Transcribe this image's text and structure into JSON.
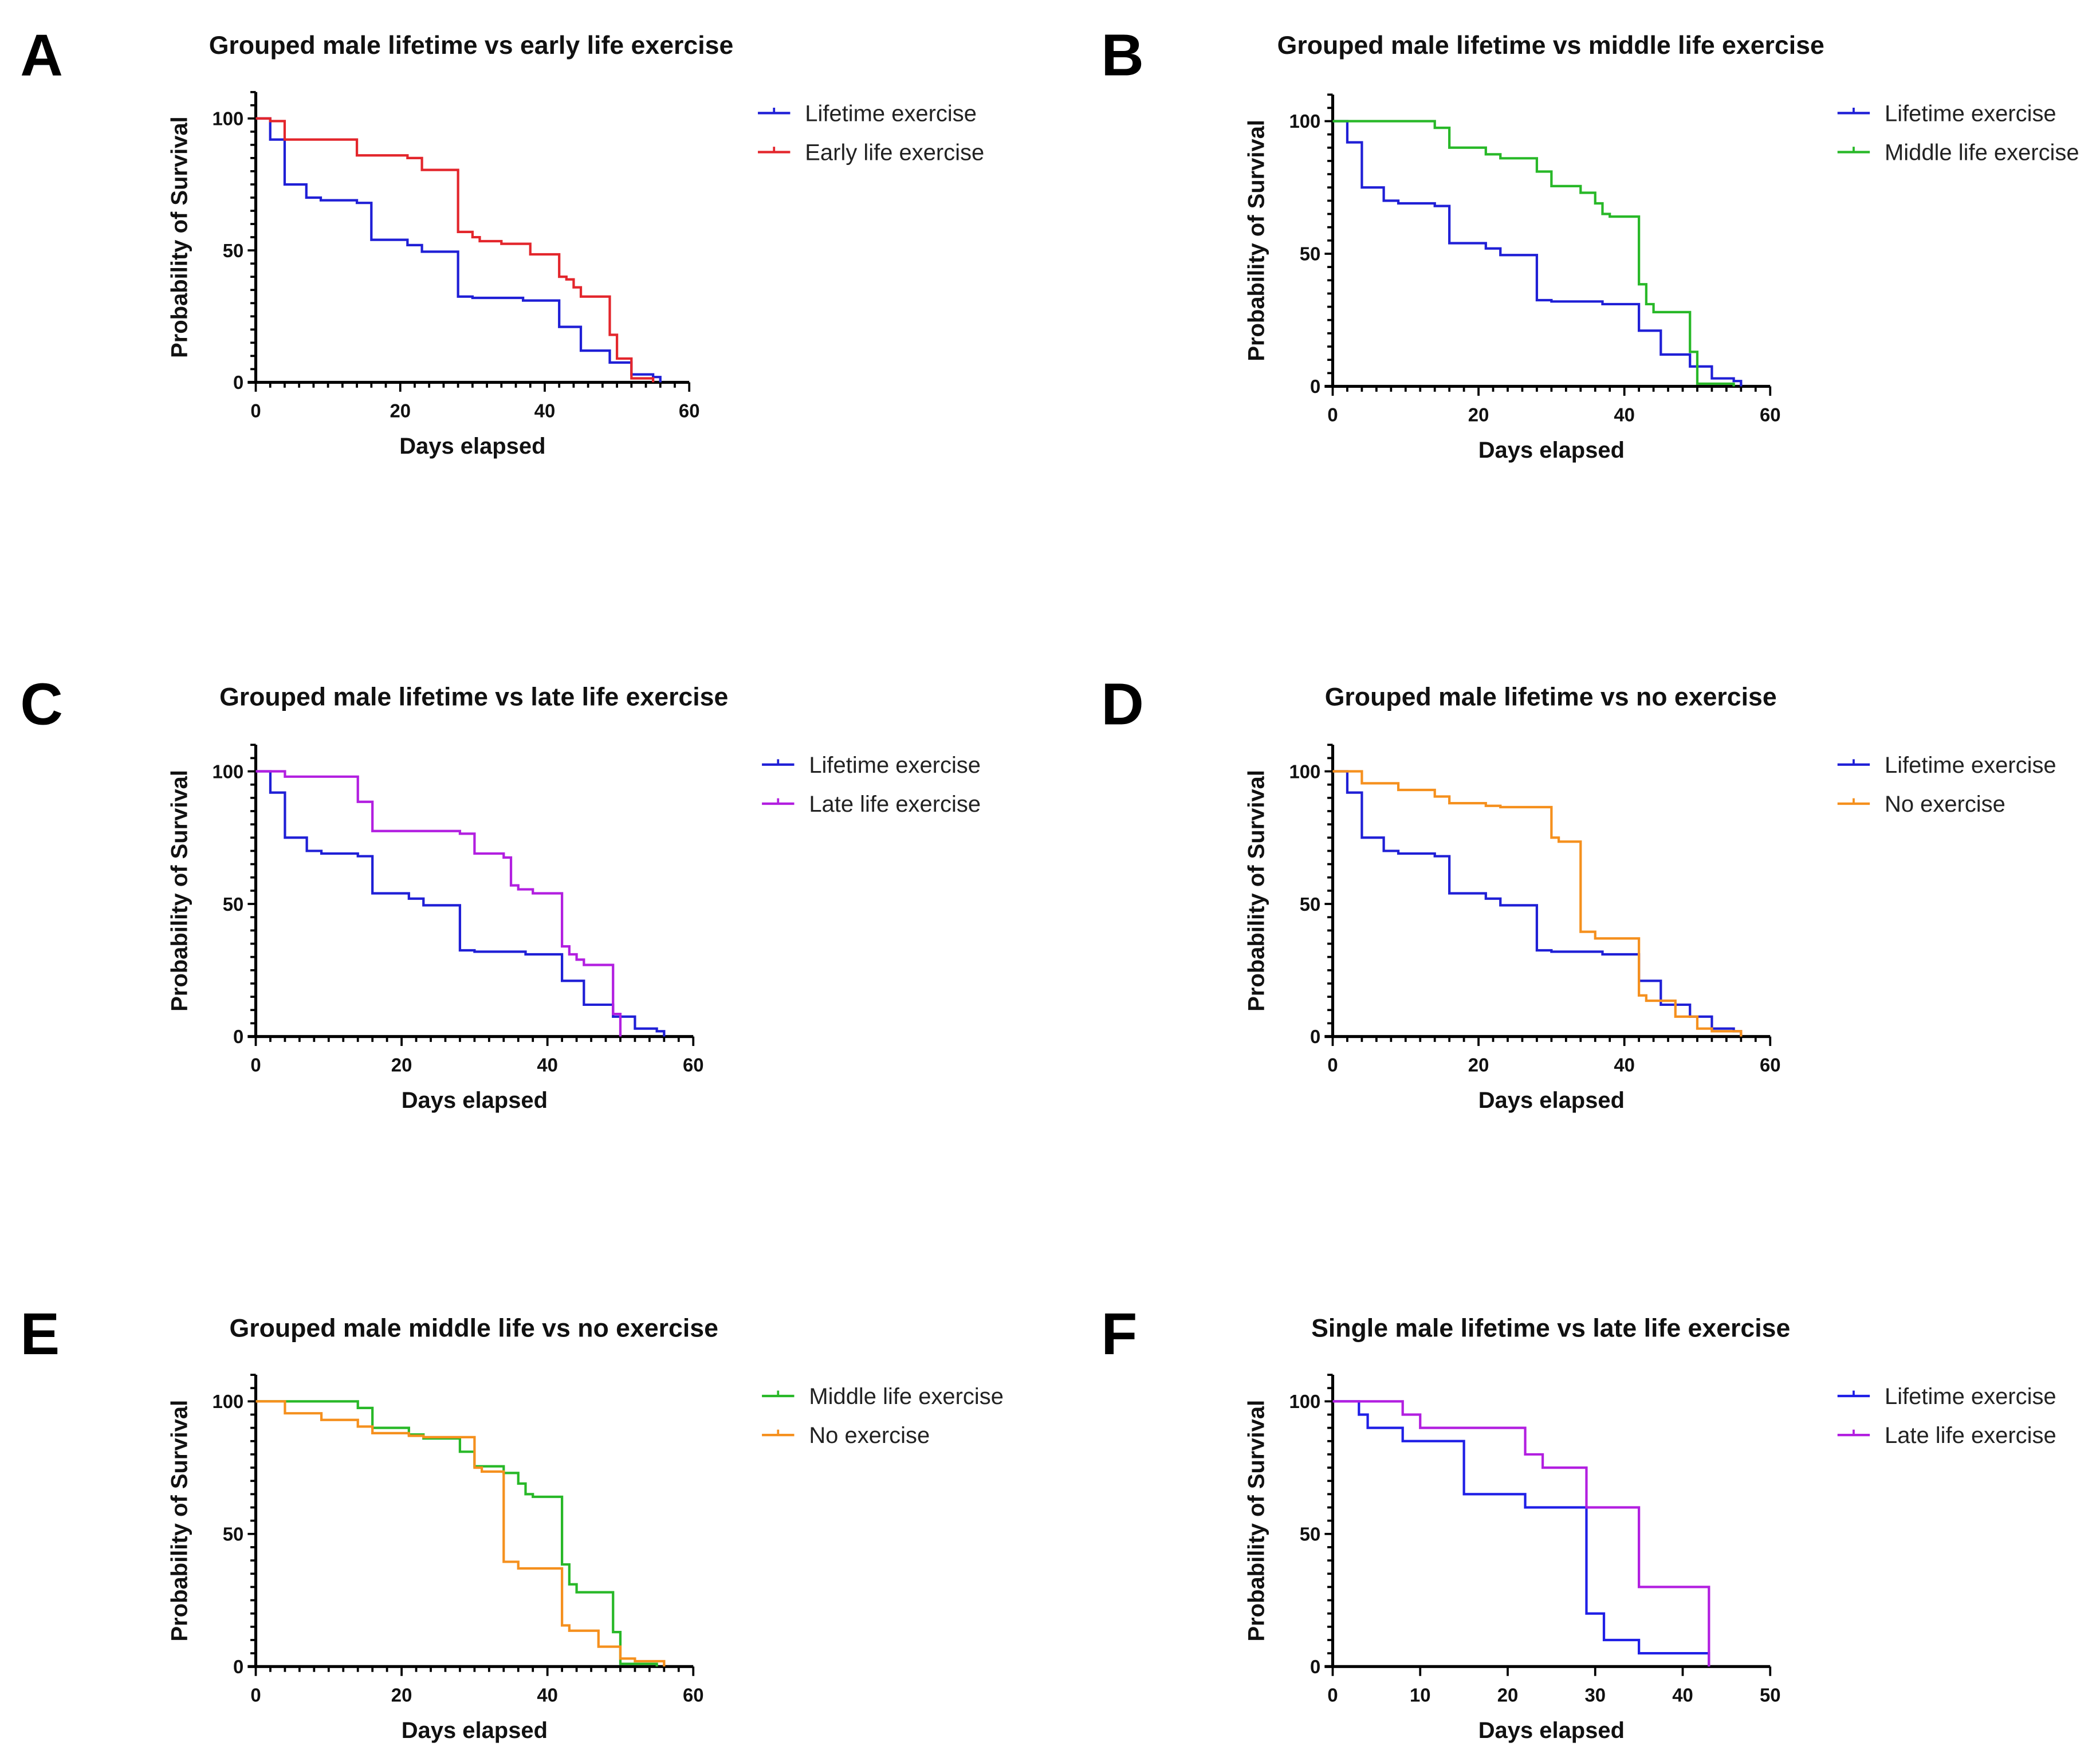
{
  "chart_data": [
    {
      "panel": "A",
      "type": "line",
      "step": true,
      "title": "Grouped male lifetime vs early life exercise",
      "xlabel": "Days elapsed",
      "ylabel": "Probability of Survival",
      "xlim": [
        0,
        60
      ],
      "ylim": [
        0,
        110
      ],
      "xticks": [
        0,
        20,
        40,
        60
      ],
      "yticks": [
        0,
        50,
        100
      ],
      "legend_placement": "right",
      "series": [
        {
          "name": "Lifetime exercise",
          "color": "#1f1fd6",
          "steps": [
            [
              0,
              100
            ],
            [
              2,
              92
            ],
            [
              4,
              75
            ],
            [
              7,
              70
            ],
            [
              9,
              69
            ],
            [
              14,
              68
            ],
            [
              16,
              54
            ],
            [
              21,
              52
            ],
            [
              23,
              49.5
            ],
            [
              28,
              32.5
            ],
            [
              30,
              32
            ],
            [
              37,
              31
            ],
            [
              42,
              21
            ],
            [
              45,
              12
            ],
            [
              49,
              7.5
            ],
            [
              52,
              3
            ],
            [
              55,
              2
            ],
            [
              56,
              0
            ]
          ]
        },
        {
          "name": "Early life exercise",
          "color": "#e3262c",
          "steps": [
            [
              0,
              100
            ],
            [
              2,
              99
            ],
            [
              4,
              92
            ],
            [
              14,
              86
            ],
            [
              21,
              85
            ],
            [
              23,
              80.5
            ],
            [
              28,
              57
            ],
            [
              30,
              55
            ],
            [
              31,
              53.5
            ],
            [
              34,
              52.5
            ],
            [
              38,
              48.5
            ],
            [
              42,
              40
            ],
            [
              43,
              39
            ],
            [
              44,
              36
            ],
            [
              45,
              32.5
            ],
            [
              49,
              18
            ],
            [
              50,
              9
            ],
            [
              52,
              1.5
            ],
            [
              55,
              0
            ]
          ]
        }
      ]
    },
    {
      "panel": "B",
      "type": "line",
      "step": true,
      "title": "Grouped male lifetime vs middle life exercise",
      "xlabel": "Days elapsed",
      "ylabel": "Probability of Survival",
      "xlim": [
        0,
        60
      ],
      "ylim": [
        0,
        110
      ],
      "xticks": [
        0,
        20,
        40,
        60
      ],
      "yticks": [
        0,
        50,
        100
      ],
      "legend_placement": "right",
      "series": [
        {
          "name": "Lifetime exercise",
          "color": "#1f1fd6",
          "steps": [
            [
              0,
              100
            ],
            [
              2,
              92
            ],
            [
              4,
              75
            ],
            [
              7,
              70
            ],
            [
              9,
              69
            ],
            [
              14,
              68
            ],
            [
              16,
              54
            ],
            [
              21,
              52
            ],
            [
              23,
              49.5
            ],
            [
              28,
              32.5
            ],
            [
              30,
              32
            ],
            [
              37,
              31
            ],
            [
              42,
              21
            ],
            [
              45,
              12
            ],
            [
              49,
              7.5
            ],
            [
              52,
              3
            ],
            [
              55,
              2
            ],
            [
              56,
              0
            ]
          ]
        },
        {
          "name": "Middle life exercise",
          "color": "#28b828",
          "steps": [
            [
              0,
              100
            ],
            [
              14,
              97.5
            ],
            [
              16,
              90
            ],
            [
              21,
              87.5
            ],
            [
              23,
              86
            ],
            [
              28,
              81
            ],
            [
              30,
              75.5
            ],
            [
              34,
              73
            ],
            [
              36,
              69
            ],
            [
              37,
              65
            ],
            [
              38,
              64
            ],
            [
              42,
              38.5
            ],
            [
              43,
              31
            ],
            [
              44,
              28
            ],
            [
              49,
              13
            ],
            [
              50,
              1
            ],
            [
              55,
              0
            ]
          ]
        }
      ]
    },
    {
      "panel": "C",
      "type": "line",
      "step": true,
      "title": "Grouped male lifetime vs late life exercise",
      "xlabel": "Days elapsed",
      "ylabel": "Probability of Survival",
      "xlim": [
        0,
        60
      ],
      "ylim": [
        0,
        110
      ],
      "xticks": [
        0,
        20,
        40,
        60
      ],
      "yticks": [
        0,
        50,
        100
      ],
      "legend_placement": "right",
      "series": [
        {
          "name": "Lifetime exercise",
          "color": "#1f1fd6",
          "steps": [
            [
              0,
              100
            ],
            [
              2,
              92
            ],
            [
              4,
              75
            ],
            [
              7,
              70
            ],
            [
              9,
              69
            ],
            [
              14,
              68
            ],
            [
              16,
              54
            ],
            [
              21,
              52
            ],
            [
              23,
              49.5
            ],
            [
              28,
              32.5
            ],
            [
              30,
              32
            ],
            [
              37,
              31
            ],
            [
              42,
              21
            ],
            [
              45,
              12
            ],
            [
              49,
              7.5
            ],
            [
              52,
              3
            ],
            [
              55,
              2
            ],
            [
              56,
              0
            ]
          ]
        },
        {
          "name": "Late life exercise",
          "color": "#b21fe0",
          "steps": [
            [
              0,
              100
            ],
            [
              4,
              98
            ],
            [
              14,
              88.5
            ],
            [
              16,
              77.5
            ],
            [
              28,
              76.5
            ],
            [
              30,
              69
            ],
            [
              34,
              67.5
            ],
            [
              35,
              57
            ],
            [
              36,
              55.5
            ],
            [
              38,
              54
            ],
            [
              42,
              34
            ],
            [
              43,
              31
            ],
            [
              44,
              29
            ],
            [
              45,
              27
            ],
            [
              49,
              8.5
            ],
            [
              50,
              0
            ]
          ]
        }
      ]
    },
    {
      "panel": "D",
      "type": "line",
      "step": true,
      "title": "Grouped male lifetime vs no exercise",
      "xlabel": "Days elapsed",
      "ylabel": "Probability of Survival",
      "xlim": [
        0,
        60
      ],
      "ylim": [
        0,
        110
      ],
      "xticks": [
        0,
        20,
        40,
        60
      ],
      "yticks": [
        0,
        50,
        100
      ],
      "legend_placement": "right",
      "series": [
        {
          "name": "Lifetime exercise",
          "color": "#1f1fd6",
          "steps": [
            [
              0,
              100
            ],
            [
              2,
              92
            ],
            [
              4,
              75
            ],
            [
              7,
              70
            ],
            [
              9,
              69
            ],
            [
              14,
              68
            ],
            [
              16,
              54
            ],
            [
              21,
              52
            ],
            [
              23,
              49.5
            ],
            [
              28,
              32.5
            ],
            [
              30,
              32
            ],
            [
              37,
              31
            ],
            [
              42,
              21
            ],
            [
              45,
              12
            ],
            [
              49,
              7.5
            ],
            [
              52,
              3
            ],
            [
              55,
              2
            ],
            [
              56,
              0
            ]
          ]
        },
        {
          "name": "No exercise",
          "color": "#f5901e",
          "steps": [
            [
              0,
              100
            ],
            [
              4,
              95.5
            ],
            [
              9,
              93
            ],
            [
              14,
              90.5
            ],
            [
              16,
              88
            ],
            [
              21,
              87
            ],
            [
              23,
              86.5
            ],
            [
              30,
              75
            ],
            [
              31,
              73.5
            ],
            [
              34,
              39.5
            ],
            [
              36,
              37
            ],
            [
              42,
              15.5
            ],
            [
              43,
              13.5
            ],
            [
              47,
              7.5
            ],
            [
              50,
              3
            ],
            [
              52,
              2
            ],
            [
              56,
              0
            ]
          ]
        }
      ]
    },
    {
      "panel": "E",
      "type": "line",
      "step": true,
      "title": "Grouped male middle life vs no exercise",
      "xlabel": "Days elapsed",
      "ylabel": "Probability of Survival",
      "xlim": [
        0,
        60
      ],
      "ylim": [
        0,
        110
      ],
      "xticks": [
        0,
        20,
        40,
        60
      ],
      "yticks": [
        0,
        50,
        100
      ],
      "legend_placement": "right",
      "series": [
        {
          "name": "Middle life exercise",
          "color": "#28b828",
          "steps": [
            [
              0,
              100
            ],
            [
              14,
              97.5
            ],
            [
              16,
              90
            ],
            [
              21,
              87.5
            ],
            [
              23,
              86
            ],
            [
              28,
              81
            ],
            [
              30,
              75.5
            ],
            [
              34,
              73
            ],
            [
              36,
              69
            ],
            [
              37,
              65
            ],
            [
              38,
              64
            ],
            [
              42,
              38.5
            ],
            [
              43,
              31
            ],
            [
              44,
              28
            ],
            [
              49,
              13
            ],
            [
              50,
              1
            ],
            [
              55,
              0
            ]
          ]
        },
        {
          "name": "No exercise",
          "color": "#f5901e",
          "steps": [
            [
              0,
              100
            ],
            [
              4,
              95.5
            ],
            [
              9,
              93
            ],
            [
              14,
              90.5
            ],
            [
              16,
              88
            ],
            [
              21,
              87
            ],
            [
              23,
              86.5
            ],
            [
              30,
              75
            ],
            [
              31,
              73.5
            ],
            [
              34,
              39.5
            ],
            [
              36,
              37
            ],
            [
              42,
              15.5
            ],
            [
              43,
              13.5
            ],
            [
              47,
              7.5
            ],
            [
              50,
              3
            ],
            [
              52,
              2
            ],
            [
              56,
              0
            ]
          ]
        }
      ]
    },
    {
      "panel": "F",
      "type": "line",
      "step": true,
      "title": "Single male lifetime vs late life exercise",
      "xlabel": "Days elapsed",
      "ylabel": "Probability of Survival",
      "xlim": [
        0,
        50
      ],
      "ylim": [
        0,
        110
      ],
      "xticks": [
        0,
        10,
        20,
        30,
        40,
        50
      ],
      "yticks": [
        0,
        50,
        100
      ],
      "legend_placement": "right",
      "series": [
        {
          "name": "Lifetime exercise",
          "color": "#1f1fe6",
          "steps": [
            [
              0,
              100
            ],
            [
              3,
              95
            ],
            [
              4,
              90
            ],
            [
              8,
              85
            ],
            [
              15,
              65
            ],
            [
              22,
              60
            ],
            [
              29,
              20
            ],
            [
              31,
              10
            ],
            [
              35,
              5
            ],
            [
              43,
              0
            ]
          ]
        },
        {
          "name": "Late life exercise",
          "color": "#b21fe0",
          "steps": [
            [
              0,
              100
            ],
            [
              8,
              95
            ],
            [
              10,
              90
            ],
            [
              22,
              80
            ],
            [
              24,
              75
            ],
            [
              29,
              60
            ],
            [
              35,
              30
            ],
            [
              43,
              0
            ]
          ]
        }
      ]
    }
  ]
}
